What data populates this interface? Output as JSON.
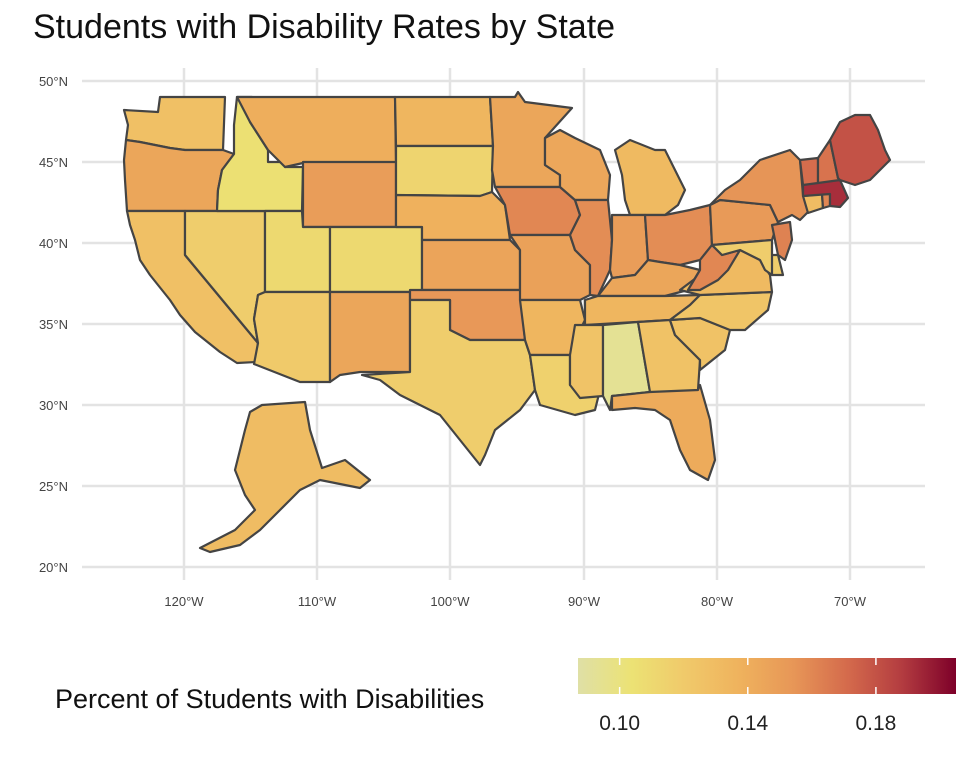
{
  "title": "Students with Disability Rates by State",
  "map": {
    "lat_labels": [
      "50°N",
      "45°N",
      "40°N",
      "35°N",
      "30°N",
      "25°N",
      "20°N"
    ],
    "lon_labels": [
      "120°W",
      "110°W",
      "100°W",
      "90°W",
      "80°W",
      "70°W"
    ],
    "grid": true
  },
  "legend": {
    "title": "Percent of Students with Disabilities",
    "tick_labels": [
      "0.10",
      "0.14",
      "0.18"
    ],
    "ticks": [
      0.1,
      0.14,
      0.18
    ],
    "range": [
      0.087,
      0.205
    ],
    "placement": "bottom",
    "colors": [
      "#dfe0a6",
      "#ece274",
      "#f0c96a",
      "#efb25d",
      "#e79657",
      "#d46a4c",
      "#b33c40",
      "#7d0029"
    ]
  },
  "states": {
    "Washington": 0.127,
    "Oregon": 0.145,
    "California": 0.127,
    "Nevada": 0.118,
    "Idaho": 0.105,
    "Montana": 0.14,
    "Wyoming": 0.15,
    "Utah": 0.11,
    "Colorado": 0.11,
    "Arizona": 0.12,
    "New Mexico": 0.145,
    "North Dakota": 0.135,
    "South Dakota": 0.113,
    "Nebraska": 0.138,
    "Kansas": 0.146,
    "Oklahoma": 0.153,
    "Texas": 0.118,
    "Minnesota": 0.145,
    "Iowa": 0.16,
    "Missouri": 0.148,
    "Arkansas": 0.135,
    "Louisiana": 0.115,
    "Wisconsin": 0.144,
    "Illinois": 0.158,
    "Michigan": 0.132,
    "Indiana": 0.15,
    "Ohio": 0.158,
    "Kentucky": 0.145,
    "Tennessee": 0.135,
    "Mississippi": 0.125,
    "Alabama": 0.093,
    "Georgia": 0.126,
    "Florida": 0.142,
    "South Carolina": 0.126,
    "North Carolina": 0.124,
    "Virginia": 0.132,
    "West Virginia": 0.16,
    "Pennsylvania": 0.152,
    "New York": 0.155,
    "New Jersey": 0.162,
    "Delaware": 0.118,
    "Maryland": 0.118,
    "Connecticut": 0.13,
    "Massachusetts": 0.192,
    "Rhode Island": 0.16,
    "Vermont": 0.17,
    "New Hampshire": 0.168,
    "Maine": 0.18,
    "Alaska": 0.13
  }
}
